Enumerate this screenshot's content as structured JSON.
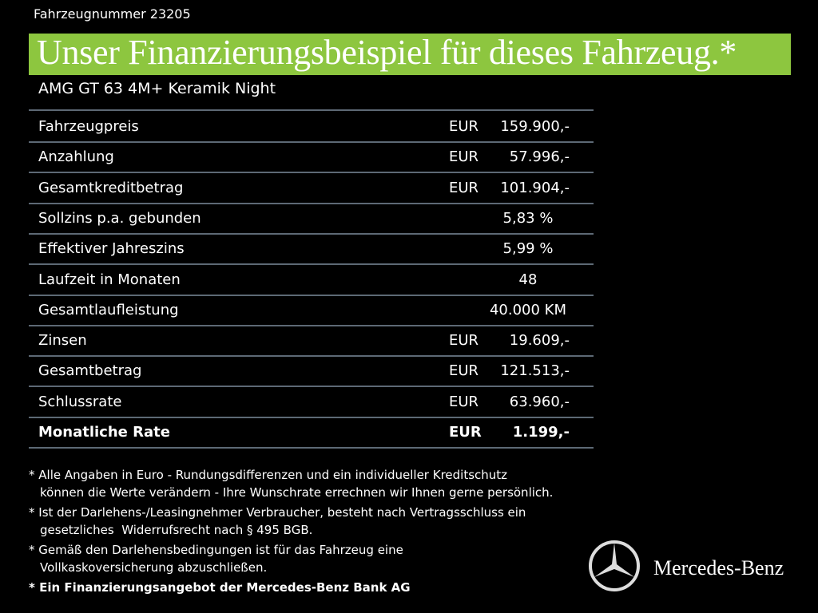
{
  "header": {
    "vehicle_number": "Fahrzeugnummer 23205",
    "title": "Unser Finanzierungsbeispiel für dieses Fahrzeug.*",
    "model": "AMG GT 63 4M+ Keramik Night"
  },
  "table": {
    "rows": [
      {
        "label": "Fahrzeugpreis",
        "currency": "EUR",
        "value": "159.900,-"
      },
      {
        "label": "Anzahlung",
        "currency": "EUR",
        "value": "57.996,-"
      },
      {
        "label": "Gesamtkreditbetrag",
        "currency": "EUR",
        "value": "101.904,-"
      },
      {
        "label": "Sollzins p.a. gebunden",
        "value": "5,83 %"
      },
      {
        "label": "Effektiver Jahreszins",
        "value": "5,99 %"
      },
      {
        "label": "Laufzeit in Monaten",
        "value": "48"
      },
      {
        "label": "Gesamtlaufleistung",
        "value": "40.000 KM"
      },
      {
        "label": "Zinsen",
        "currency": "EUR",
        "value": "19.609,-"
      },
      {
        "label": "Gesamtbetrag",
        "currency": "EUR",
        "value": "121.513,-"
      },
      {
        "label": "Schlussrate",
        "currency": "EUR",
        "value": "63.960,-"
      },
      {
        "label": "Monatliche Rate",
        "currency": "EUR",
        "value": "1.199,-"
      }
    ]
  },
  "footnotes": [
    {
      "lines": [
        "* Alle Angaben in Euro - Rundungsdifferenzen und ein individueller Kreditschutz",
        "können die Werte verändern - Ihre Wunschrate errechnen wir Ihnen gerne persönlich."
      ]
    },
    {
      "lines": [
        "* Ist der Darlehens-/Leasingnehmer Verbraucher, besteht nach Vertragsschluss ein",
        "gesetzliches  Widerrufsrecht nach § 495 BGB."
      ]
    },
    {
      "lines": [
        "* Gemäß den Darlehensbedingungen ist für das Fahrzeug eine",
        "Vollkaskoversicherung abzuschließen."
      ]
    },
    {
      "lines": [
        "* Ein Finanzierungsangebot der Mercedes-Benz Bank AG"
      ]
    }
  ],
  "brand": "Mercedes-Benz"
}
